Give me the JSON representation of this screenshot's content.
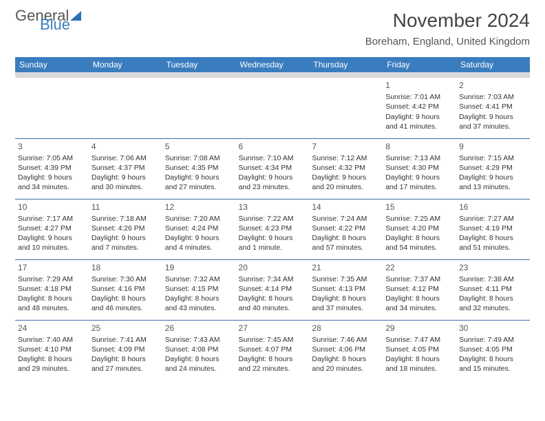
{
  "brand": {
    "part1": "General",
    "part2": "Blue"
  },
  "title": "November 2024",
  "location": "Boreham, England, United Kingdom",
  "columns": [
    "Sunday",
    "Monday",
    "Tuesday",
    "Wednesday",
    "Thursday",
    "Friday",
    "Saturday"
  ],
  "colors": {
    "header_bg": "#3a7dbf",
    "header_fg": "#ffffff",
    "rule": "#3a6ea5",
    "brand_accent": "#3a7dbf"
  },
  "weeks": [
    [
      null,
      null,
      null,
      null,
      null,
      {
        "n": "1",
        "sr": "7:01 AM",
        "ss": "4:42 PM",
        "dl": "9 hours and 41 minutes."
      },
      {
        "n": "2",
        "sr": "7:03 AM",
        "ss": "4:41 PM",
        "dl": "9 hours and 37 minutes."
      }
    ],
    [
      {
        "n": "3",
        "sr": "7:05 AM",
        "ss": "4:39 PM",
        "dl": "9 hours and 34 minutes."
      },
      {
        "n": "4",
        "sr": "7:06 AM",
        "ss": "4:37 PM",
        "dl": "9 hours and 30 minutes."
      },
      {
        "n": "5",
        "sr": "7:08 AM",
        "ss": "4:35 PM",
        "dl": "9 hours and 27 minutes."
      },
      {
        "n": "6",
        "sr": "7:10 AM",
        "ss": "4:34 PM",
        "dl": "9 hours and 23 minutes."
      },
      {
        "n": "7",
        "sr": "7:12 AM",
        "ss": "4:32 PM",
        "dl": "9 hours and 20 minutes."
      },
      {
        "n": "8",
        "sr": "7:13 AM",
        "ss": "4:30 PM",
        "dl": "9 hours and 17 minutes."
      },
      {
        "n": "9",
        "sr": "7:15 AM",
        "ss": "4:29 PM",
        "dl": "9 hours and 13 minutes."
      }
    ],
    [
      {
        "n": "10",
        "sr": "7:17 AM",
        "ss": "4:27 PM",
        "dl": "9 hours and 10 minutes."
      },
      {
        "n": "11",
        "sr": "7:18 AM",
        "ss": "4:26 PM",
        "dl": "9 hours and 7 minutes."
      },
      {
        "n": "12",
        "sr": "7:20 AM",
        "ss": "4:24 PM",
        "dl": "9 hours and 4 minutes."
      },
      {
        "n": "13",
        "sr": "7:22 AM",
        "ss": "4:23 PM",
        "dl": "9 hours and 1 minute."
      },
      {
        "n": "14",
        "sr": "7:24 AM",
        "ss": "4:22 PM",
        "dl": "8 hours and 57 minutes."
      },
      {
        "n": "15",
        "sr": "7:25 AM",
        "ss": "4:20 PM",
        "dl": "8 hours and 54 minutes."
      },
      {
        "n": "16",
        "sr": "7:27 AM",
        "ss": "4:19 PM",
        "dl": "8 hours and 51 minutes."
      }
    ],
    [
      {
        "n": "17",
        "sr": "7:29 AM",
        "ss": "4:18 PM",
        "dl": "8 hours and 48 minutes."
      },
      {
        "n": "18",
        "sr": "7:30 AM",
        "ss": "4:16 PM",
        "dl": "8 hours and 46 minutes."
      },
      {
        "n": "19",
        "sr": "7:32 AM",
        "ss": "4:15 PM",
        "dl": "8 hours and 43 minutes."
      },
      {
        "n": "20",
        "sr": "7:34 AM",
        "ss": "4:14 PM",
        "dl": "8 hours and 40 minutes."
      },
      {
        "n": "21",
        "sr": "7:35 AM",
        "ss": "4:13 PM",
        "dl": "8 hours and 37 minutes."
      },
      {
        "n": "22",
        "sr": "7:37 AM",
        "ss": "4:12 PM",
        "dl": "8 hours and 34 minutes."
      },
      {
        "n": "23",
        "sr": "7:38 AM",
        "ss": "4:11 PM",
        "dl": "8 hours and 32 minutes."
      }
    ],
    [
      {
        "n": "24",
        "sr": "7:40 AM",
        "ss": "4:10 PM",
        "dl": "8 hours and 29 minutes."
      },
      {
        "n": "25",
        "sr": "7:41 AM",
        "ss": "4:09 PM",
        "dl": "8 hours and 27 minutes."
      },
      {
        "n": "26",
        "sr": "7:43 AM",
        "ss": "4:08 PM",
        "dl": "8 hours and 24 minutes."
      },
      {
        "n": "27",
        "sr": "7:45 AM",
        "ss": "4:07 PM",
        "dl": "8 hours and 22 minutes."
      },
      {
        "n": "28",
        "sr": "7:46 AM",
        "ss": "4:06 PM",
        "dl": "8 hours and 20 minutes."
      },
      {
        "n": "29",
        "sr": "7:47 AM",
        "ss": "4:05 PM",
        "dl": "8 hours and 18 minutes."
      },
      {
        "n": "30",
        "sr": "7:49 AM",
        "ss": "4:05 PM",
        "dl": "8 hours and 15 minutes."
      }
    ]
  ],
  "labels": {
    "sunrise": "Sunrise: ",
    "sunset": "Sunset: ",
    "daylight": "Daylight: "
  }
}
